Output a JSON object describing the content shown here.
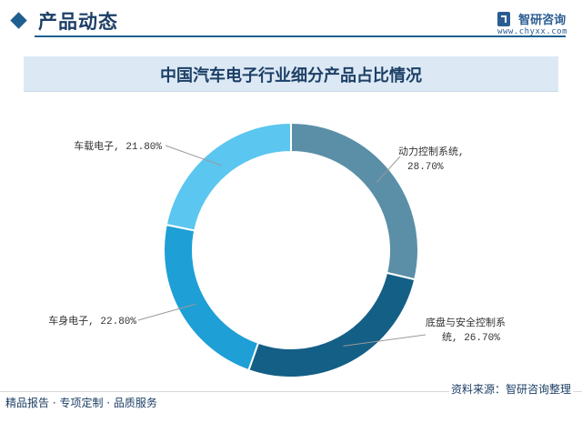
{
  "header": {
    "title": "产品动态"
  },
  "brand": {
    "name": "智研咨询",
    "url": "www.chyxx.com"
  },
  "chart_data": {
    "type": "pie",
    "title": "中国汽车电子行业细分产品占比情况",
    "slices": [
      {
        "label": "动力控制系统,",
        "value_text": "28.70%",
        "value": 28.7,
        "color": "#5b8fa8"
      },
      {
        "label": "底盘与安全控制系统,",
        "value_text": "26.70%",
        "value": 26.7,
        "color": "#145f86"
      },
      {
        "label": "车身电子,",
        "value_text": "22.80%",
        "value": 22.8,
        "color": "#1e9fd6"
      },
      {
        "label": "车载电子,",
        "value_text": "21.80%",
        "value": 21.8,
        "color": "#5bc6ef"
      }
    ],
    "donut": true,
    "legend": "none"
  },
  "footer": {
    "left": "精品报告 · 专项定制 · 品质服务",
    "source": "资料来源：智研咨询整理"
  }
}
